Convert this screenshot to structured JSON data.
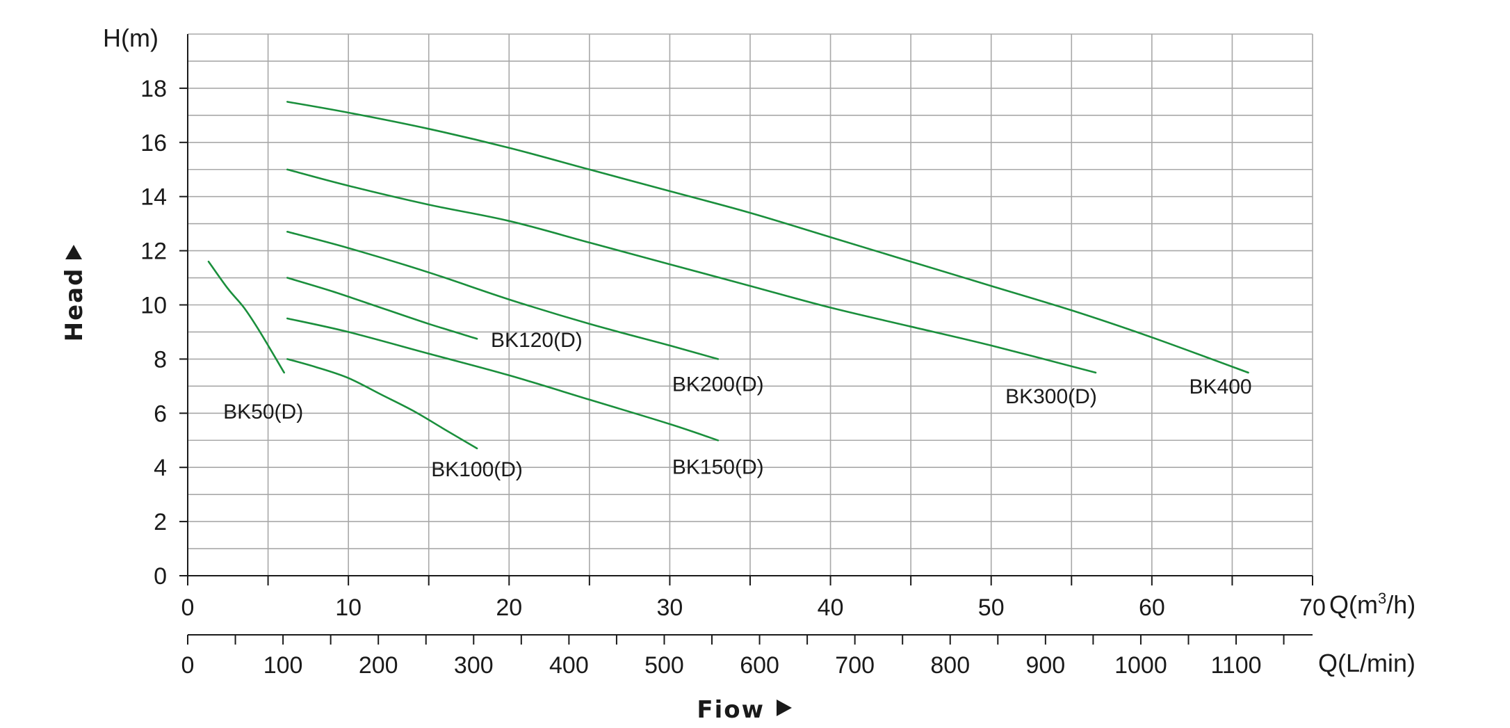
{
  "chart_data": {
    "type": "line",
    "y_axis": {
      "label": "H(m)",
      "title": "Head",
      "ticks": [
        "0",
        "2",
        "4",
        "6",
        "8",
        "10",
        "12",
        "14",
        "16",
        "18"
      ],
      "ylim": [
        0,
        20
      ]
    },
    "x_axis": {
      "label": "Q(m³/h)",
      "label_main": "Q(m",
      "label_sup": "3",
      "label_tail": "/h)",
      "ticks": [
        "0",
        "10",
        "20",
        "30",
        "40",
        "50",
        "60",
        "70"
      ],
      "xlim": [
        0,
        70
      ]
    },
    "x_axis_secondary": {
      "label": "Q(L/min)",
      "ticks": [
        "0",
        "100",
        "200",
        "300",
        "400",
        "500",
        "600",
        "700",
        "800",
        "900",
        "1000",
        "1100"
      ],
      "xlim": [
        0,
        1170
      ]
    },
    "x_title": "Fiow",
    "grid": true,
    "series_color": "#1a8f3c",
    "series": [
      {
        "name": "BK50(D)",
        "x": [
          1.3,
          2.5,
          3.5,
          4.5,
          6.0
        ],
        "y": [
          11.6,
          10.6,
          9.9,
          9.0,
          7.5
        ]
      },
      {
        "name": "BK100(D)",
        "x": [
          6.2,
          8,
          10,
          12,
          14,
          16,
          18.0
        ],
        "y": [
          8.0,
          7.7,
          7.3,
          6.7,
          6.1,
          5.4,
          4.7
        ]
      },
      {
        "name": "BK120(D)",
        "x": [
          6.2,
          9,
          12,
          15,
          18.0
        ],
        "y": [
          11.0,
          10.5,
          9.9,
          9.3,
          8.75
        ]
      },
      {
        "name": "BK150(D)",
        "x": [
          6.2,
          10,
          15,
          20,
          25,
          30,
          33.0
        ],
        "y": [
          9.5,
          9.0,
          8.2,
          7.4,
          6.5,
          5.6,
          5.0
        ]
      },
      {
        "name": "BK200(D)",
        "x": [
          6.2,
          10,
          15,
          20,
          25,
          30,
          33.0
        ],
        "y": [
          12.7,
          12.1,
          11.2,
          10.2,
          9.3,
          8.5,
          8.0
        ]
      },
      {
        "name": "BK300(D)",
        "x": [
          6.2,
          10,
          15,
          20,
          25,
          30,
          35,
          40,
          45,
          50,
          56.5
        ],
        "y": [
          15.0,
          14.4,
          13.7,
          13.1,
          12.3,
          11.5,
          10.7,
          9.9,
          9.2,
          8.5,
          7.5
        ]
      },
      {
        "name": "BK400",
        "x": [
          6.2,
          10,
          15,
          20,
          25,
          30,
          35,
          40,
          45,
          50,
          55,
          60,
          66.0
        ],
        "y": [
          17.5,
          17.1,
          16.5,
          15.8,
          15.0,
          14.2,
          13.4,
          12.5,
          11.6,
          10.7,
          9.8,
          8.8,
          7.5
        ]
      }
    ]
  }
}
